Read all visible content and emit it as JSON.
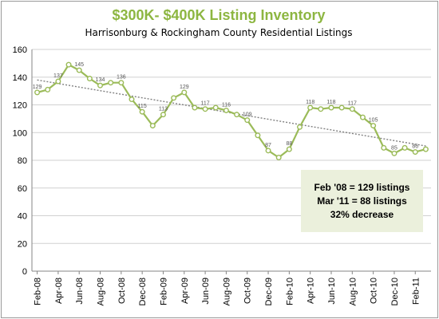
{
  "chart_data": {
    "type": "line",
    "title": "$300K- $400K Listing Inventory",
    "subtitle": "Harrisonburg & Rockingham County Residential Listings",
    "xlabel": "",
    "ylabel": "",
    "ylim": [
      0,
      160
    ],
    "yticks": [
      0,
      20,
      40,
      60,
      80,
      100,
      120,
      140,
      160
    ],
    "grid": true,
    "trendline": true,
    "x_labels": [
      "Feb-08",
      "Apr-08",
      "Jun-08",
      "Aug-08",
      "Oct-08",
      "Dec-08",
      "Feb-09",
      "Apr-09",
      "Jun-09",
      "Aug-09",
      "Oct-09",
      "Dec-09",
      "Feb-10",
      "Apr-10",
      "Jun-10",
      "Aug-10",
      "Oct-10",
      "Dec-10",
      "Feb-11"
    ],
    "x": [
      "Feb-08",
      "Mar-08",
      "Apr-08",
      "May-08",
      "Jun-08",
      "Jul-08",
      "Aug-08",
      "Sep-08",
      "Oct-08",
      "Nov-08",
      "Dec-08",
      "Jan-09",
      "Feb-09",
      "Mar-09",
      "Apr-09",
      "May-09",
      "Jun-09",
      "Jul-09",
      "Aug-09",
      "Sep-09",
      "Oct-09",
      "Nov-09",
      "Dec-09",
      "Jan-10",
      "Feb-10",
      "Mar-10",
      "Apr-10",
      "May-10",
      "Jun-10",
      "Jul-10",
      "Aug-10",
      "Sep-10",
      "Oct-10",
      "Nov-10",
      "Dec-10",
      "Jan-11",
      "Feb-11",
      "Mar-11"
    ],
    "series": [
      {
        "values": [
          129,
          131,
          137,
          149,
          145,
          139,
          134,
          136,
          136,
          124,
          115,
          105,
          113,
          125,
          129,
          118,
          117,
          118,
          116,
          113,
          109,
          98,
          87,
          82,
          88,
          104,
          118,
          117,
          118,
          118,
          117,
          111,
          105,
          89,
          85,
          89,
          86,
          88
        ]
      }
    ],
    "data_labels": [
      {
        "index": 0,
        "text": "129"
      },
      {
        "index": 2,
        "text": "137"
      },
      {
        "index": 4,
        "text": "145"
      },
      {
        "index": 6,
        "text": "134"
      },
      {
        "index": 8,
        "text": "136"
      },
      {
        "index": 10,
        "text": "115"
      },
      {
        "index": 12,
        "text": "113"
      },
      {
        "index": 14,
        "text": "129"
      },
      {
        "index": 16,
        "text": "117"
      },
      {
        "index": 18,
        "text": "116"
      },
      {
        "index": 20,
        "text": "109"
      },
      {
        "index": 22,
        "text": "87"
      },
      {
        "index": 24,
        "text": "88"
      },
      {
        "index": 26,
        "text": "118"
      },
      {
        "index": 28,
        "text": "118"
      },
      {
        "index": 30,
        "text": "117"
      },
      {
        "index": 32,
        "text": "105"
      },
      {
        "index": 34,
        "text": "85"
      },
      {
        "index": 36,
        "text": "86"
      }
    ],
    "annotation": {
      "line1": "Feb '08 = 129 listings",
      "line2": "Mar '11 = 88 listings",
      "line3": "32% decrease"
    },
    "colors": {
      "title": "#8db641",
      "line": "#9bbb59",
      "trend": "#808080",
      "grid": "#d0d0d0",
      "annotation_bg": "#ebf0dc"
    }
  }
}
